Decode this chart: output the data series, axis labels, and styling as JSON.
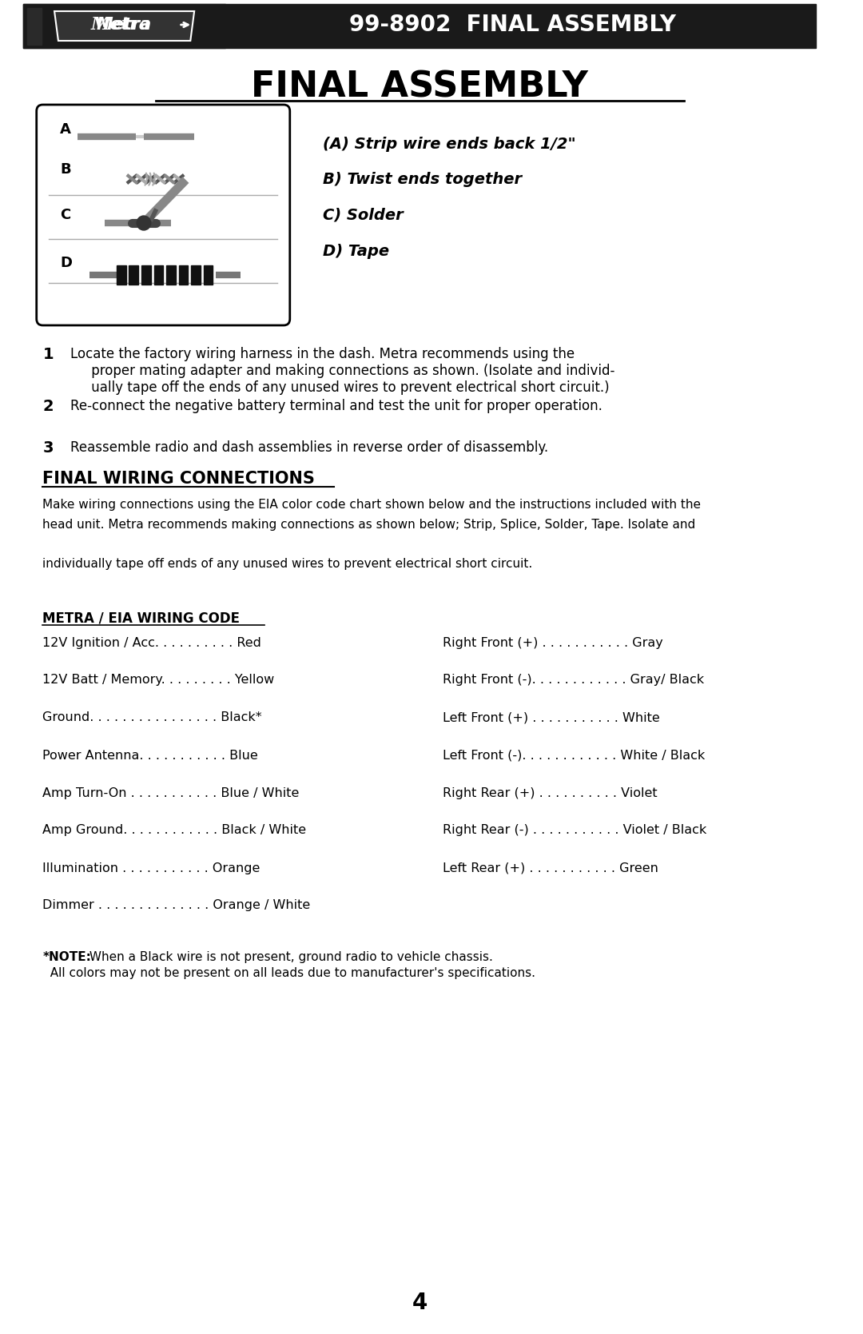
{
  "bg_color": "#ffffff",
  "header_bg": "#1a1a1a",
  "header_text": "99-8902  FINAL ASSEMBLY",
  "header_text_color": "#ffffff",
  "page_title": "FINAL ASSEMBLY",
  "steps": [
    "1   Locate the factory wiring harness in the dash. Metra recommends using the\n     proper mating adapter and making connections as shown. (Isolate and individ-\n     ually tape off the ends of any unused wires to prevent electrical short circuit.)",
    "2   Re-connect the negative battery terminal and test the unit for proper operation.",
    "3   Reassemble radio and dash assemblies in reverse order of disassembly."
  ],
  "diagram_labels": [
    "A",
    "B",
    "C",
    "D"
  ],
  "instructions_right": [
    "(A) Strip wire ends back 1/2\"",
    "B) Twist ends together",
    "C) Solder",
    "D) Tape"
  ],
  "section_title": "FINAL WIRING CONNECTIONS",
  "section_body": "Make wiring connections using the EIA color code chart shown below and the instructions included with the\nhead unit. Metra recommends making connections as shown below; Strip, Splice, Solder, Tape. Isolate and\n\nindividually tape off ends of any unused wires to prevent electrical short circuit.",
  "wiring_subtitle": "METRA / EIA WIRING CODE",
  "wiring_left": [
    [
      "12V Ignition / Acc. . . . . . . . . . Red",
      "Right Front (+) . . . . . . . . . . . Gray"
    ],
    [
      "12V Batt / Memory. . . . . . . . . Yellow",
      "Right Front (-). . . . . . . . . . . . Gray/ Black"
    ],
    [
      "Ground. . . . . . . . . . . . . . . . Black*",
      "Left Front (+) . . . . . . . . . . . White"
    ],
    [
      "Power Antenna. . . . . . . . . . . Blue",
      "Left Front (-). . . . . . . . . . . . White / Black"
    ],
    [
      "Amp Turn-On . . . . . . . . . . . Blue / White",
      "Right Rear (+) . . . . . . . . . . Violet"
    ],
    [
      "Amp Ground. . . . . . . . . . . . Black / White",
      "Right Rear (-) . . . . . . . . . . . Violet / Black"
    ],
    [
      "Illumination . . . . . . . . . . . Orange",
      "Left Rear (+) . . . . . . . . . . . Green"
    ],
    [
      "Dimmer . . . . . . . . . . . . . . Orange / White",
      ""
    ]
  ],
  "note_bold": "*NOTE:",
  "note_text": " When a Black wire is not present, ground radio to vehicle chassis.\n  All colors may not be present on all leads due to manufacturer's specifications.",
  "page_number": "4"
}
